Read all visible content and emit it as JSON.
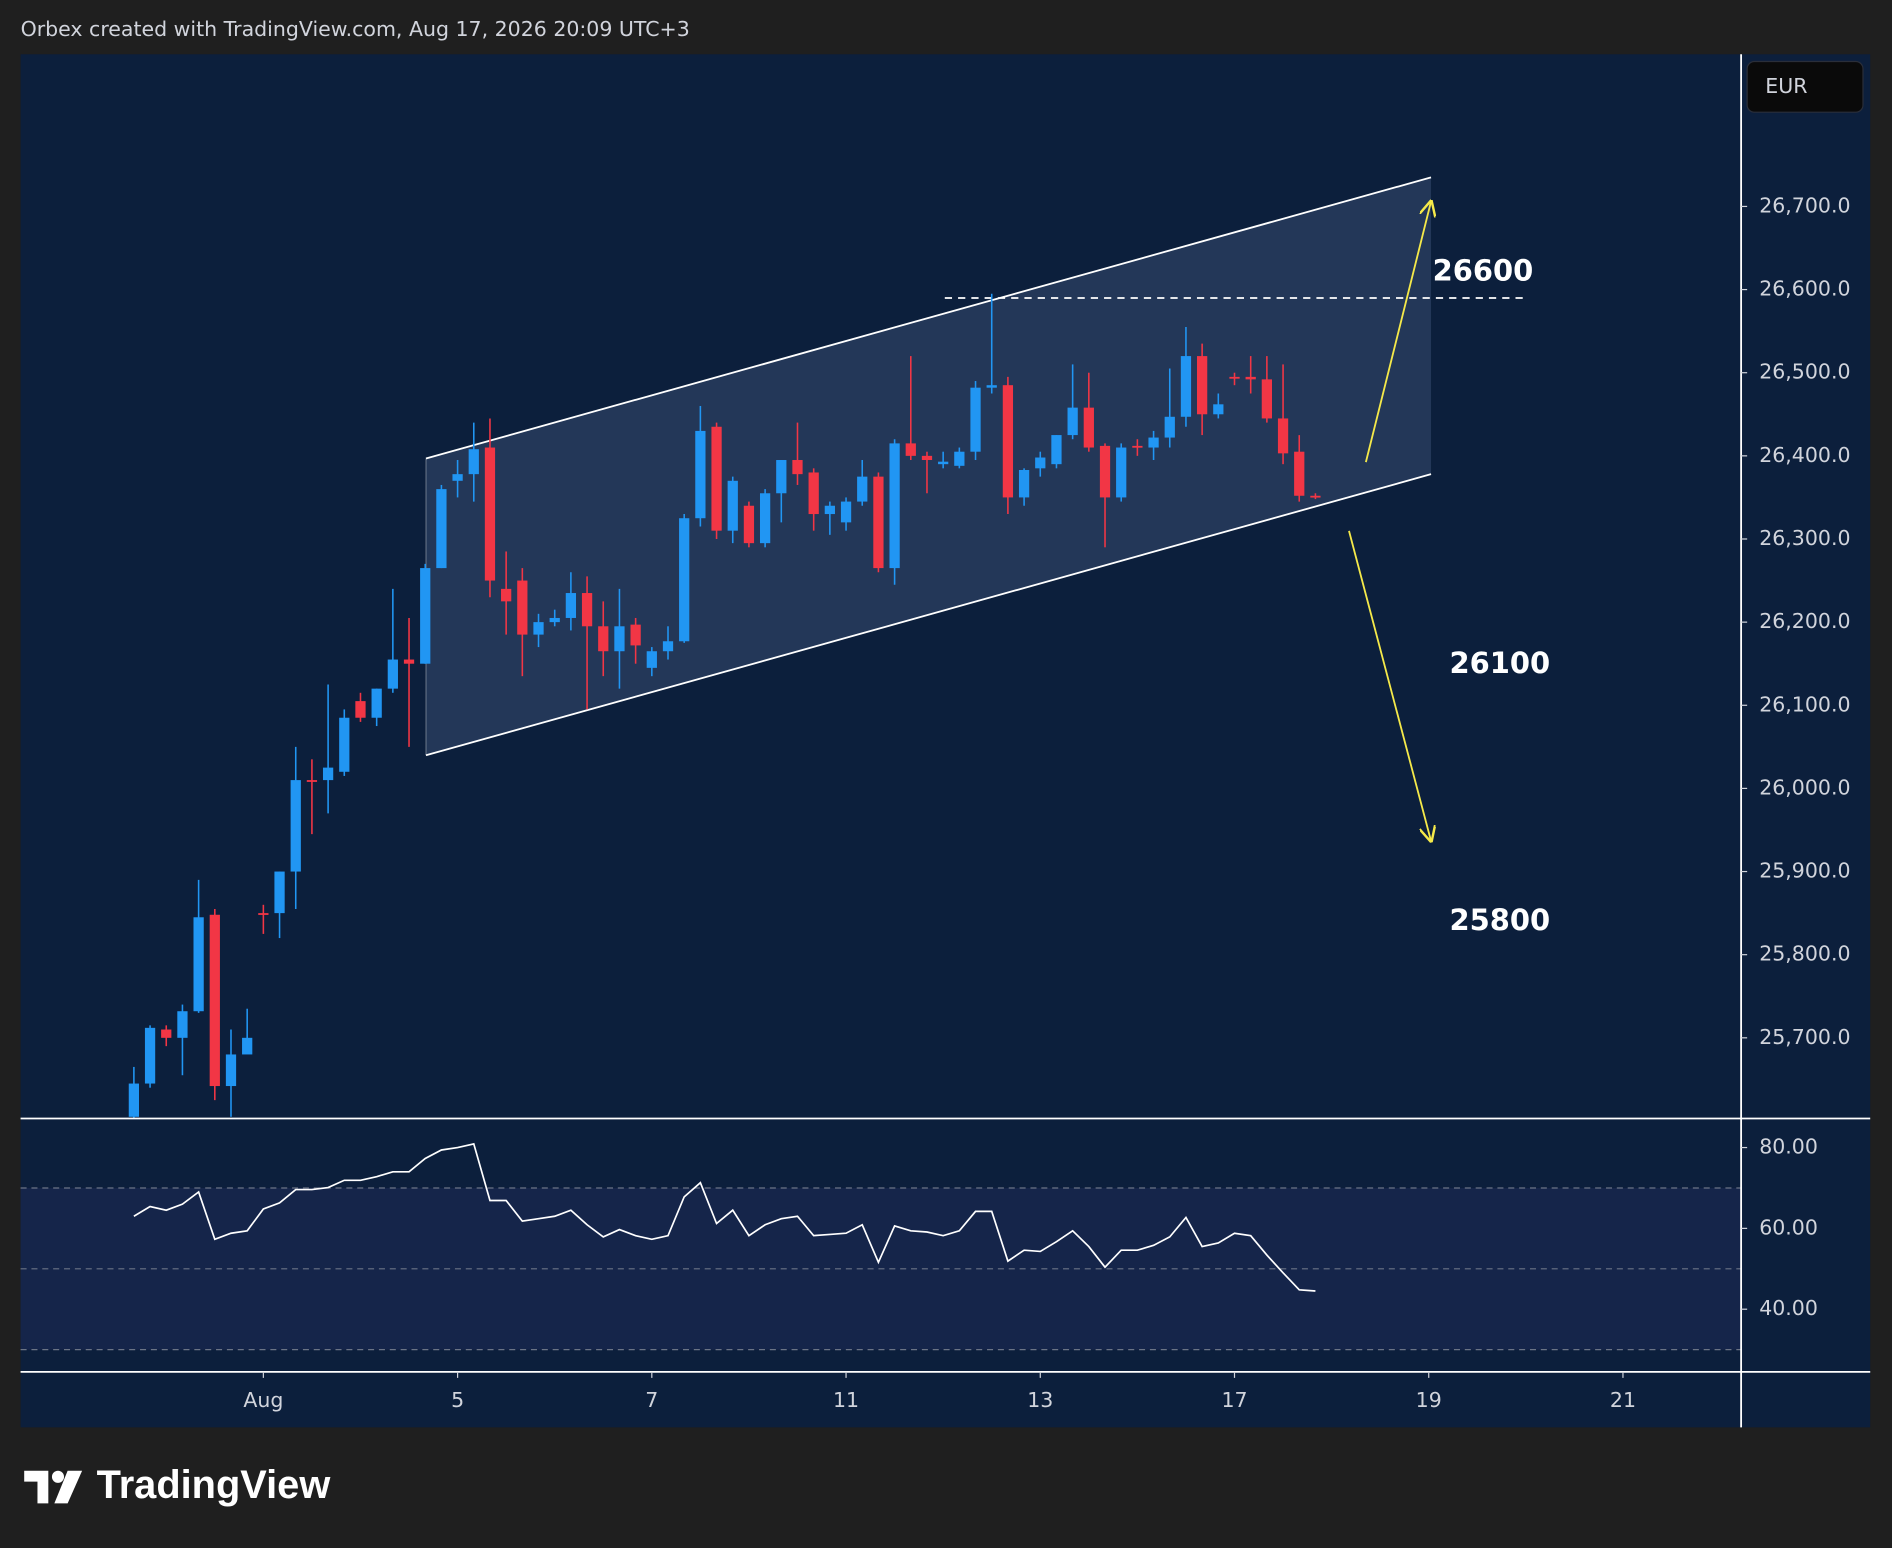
{
  "chart_data": {
    "type": "candlestick",
    "header": "Orbex created with TradingView.com, Aug 17, 2026 20:09 UTC+3",
    "currency": "EUR",
    "brand": "TradingView",
    "annotations": [
      "26600",
      "26100",
      "25800"
    ],
    "up_color": "#2196f3",
    "down_color": "#f23645",
    "candles": {
      "open": [
        25605,
        25645,
        25710,
        25700,
        25732,
        25848,
        25642,
        25680,
        25850,
        25850,
        25900,
        26010,
        26010,
        26020,
        26105,
        26085,
        26120,
        26155,
        26150,
        26265,
        26370,
        26378,
        26410,
        26240,
        26250,
        26185,
        26200,
        26205,
        26235,
        26195,
        26165,
        26197,
        26145,
        26165,
        26177,
        26325,
        26435,
        26310,
        26340,
        26295,
        26355,
        26395,
        26380,
        26330,
        26320,
        26345,
        26375,
        26265,
        26415,
        26400,
        26390,
        26388,
        26405,
        26482,
        26485,
        26350,
        26385,
        26390,
        26425,
        26458,
        26412,
        26350,
        26412,
        26410,
        26422,
        26447,
        26520,
        26450,
        26495,
        26495,
        26492,
        26445,
        26405,
        26352
      ],
      "high": [
        25665,
        25715,
        25715,
        25740,
        25890,
        25855,
        25710,
        25735,
        25860,
        25900,
        26050,
        26035,
        26125,
        26095,
        26115,
        26120,
        26240,
        26205,
        26270,
        26365,
        26395,
        26440,
        26445,
        26285,
        26265,
        26210,
        26215,
        26260,
        26255,
        26225,
        26240,
        26205,
        26170,
        26195,
        26330,
        26460,
        26440,
        26375,
        26345,
        26360,
        26395,
        26440,
        26385,
        26345,
        26350,
        26395,
        26380,
        26420,
        26520,
        26405,
        26405,
        26410,
        26490,
        26595,
        26495,
        26385,
        26405,
        26425,
        26510,
        26500,
        26415,
        26415,
        26420,
        26430,
        26505,
        26555,
        26535,
        26475,
        26500,
        26520,
        26520,
        26510,
        26425,
        26355
      ],
      "low": [
        25590,
        25640,
        25690,
        25655,
        25730,
        25625,
        25605,
        25690,
        25825,
        25820,
        25855,
        25945,
        25970,
        26015,
        26080,
        26075,
        26115,
        26050,
        26150,
        26265,
        26350,
        26345,
        26230,
        26185,
        26135,
        26170,
        26195,
        26190,
        26095,
        26135,
        26120,
        26150,
        26135,
        26155,
        26175,
        26315,
        26300,
        26295,
        26290,
        26290,
        26320,
        26365,
        26310,
        26305,
        26310,
        26340,
        26260,
        26245,
        26395,
        26355,
        26385,
        26385,
        26395,
        26475,
        26330,
        26340,
        26375,
        26385,
        26420,
        26405,
        26290,
        26345,
        26400,
        26395,
        26410,
        26435,
        26425,
        26445,
        26485,
        26475,
        26440,
        26390,
        26345,
        26348
      ],
      "close": [
        25645,
        25712,
        25700,
        25732,
        25845,
        25642,
        25680,
        25700,
        25848,
        25900,
        26010,
        26008,
        26025,
        26085,
        26085,
        26120,
        26155,
        26150,
        26265,
        26360,
        26378,
        26408,
        26250,
        26225,
        26185,
        26200,
        26205,
        26235,
        26195,
        26165,
        26195,
        26172,
        26165,
        26177,
        26325,
        26430,
        26310,
        26370,
        26295,
        26355,
        26395,
        26378,
        26330,
        26340,
        26345,
        26375,
        26265,
        26415,
        26400,
        26395,
        26393,
        26405,
        26482,
        26485,
        26350,
        26383,
        26398,
        26425,
        26458,
        26410,
        26350,
        26410,
        26410,
        26422,
        26447,
        26520,
        26450,
        26462,
        26493,
        26492,
        26445,
        26403,
        26352,
        26350
      ]
    },
    "ylim": [
      25603,
      26883
    ],
    "yticks": [
      {
        "value": 25700,
        "label": "25,700.0"
      },
      {
        "value": 25800,
        "label": "25,800.0"
      },
      {
        "value": 25900,
        "label": "25,900.0"
      },
      {
        "value": 26000,
        "label": "26,000.0"
      },
      {
        "value": 26100,
        "label": "26,100.0"
      },
      {
        "value": 26200,
        "label": "26,200.0"
      },
      {
        "value": 26300,
        "label": "26,300.0"
      },
      {
        "value": 26400,
        "label": "26,400.0"
      },
      {
        "value": 26500,
        "label": "26,500.0"
      },
      {
        "value": 26600,
        "label": "26,600.0"
      },
      {
        "value": 26700,
        "label": "26,700.0"
      }
    ],
    "xlim": [
      -7,
      99.3
    ],
    "xticks": [
      {
        "value": 8,
        "label": "Aug"
      },
      {
        "value": 20,
        "label": "5"
      },
      {
        "value": 32,
        "label": "7"
      },
      {
        "value": 44,
        "label": "11"
      },
      {
        "value": 56,
        "label": "13"
      },
      {
        "value": 68,
        "label": "17"
      },
      {
        "value": 80,
        "label": "19"
      },
      {
        "value": 92,
        "label": "21"
      }
    ],
    "rsi": {
      "color": "#ffffff",
      "values": [
        63.0,
        65.4,
        64.5,
        66.0,
        69.0,
        57.3,
        58.8,
        59.4,
        64.8,
        66.3,
        69.6,
        69.6,
        70.1,
        71.9,
        71.9,
        72.8,
        74.0,
        74.0,
        77.3,
        79.4,
        80.0,
        80.9,
        66.9,
        66.9,
        61.8,
        62.4,
        63.0,
        64.5,
        60.9,
        57.9,
        59.7,
        58.2,
        57.3,
        58.2,
        67.8,
        71.3,
        61.2,
        64.5,
        58.2,
        60.9,
        62.4,
        63.0,
        58.2,
        58.5,
        58.8,
        60.9,
        51.6,
        60.6,
        59.4,
        59.1,
        58.2,
        59.4,
        64.2,
        64.2,
        51.9,
        54.6,
        54.3,
        56.7,
        59.4,
        55.5,
        50.4,
        54.6,
        54.6,
        55.8,
        57.9,
        62.7,
        55.5,
        56.4,
        58.8,
        58.2,
        53.4,
        49.0,
        44.8,
        44.5
      ],
      "ylim": [
        24.5,
        86.6
      ],
      "yticks": [
        {
          "value": 80,
          "label": "80.00"
        },
        {
          "value": 60,
          "label": "60.00"
        },
        {
          "value": 40,
          "label": "40.00"
        }
      ],
      "levels": [
        70,
        50,
        30
      ]
    }
  }
}
